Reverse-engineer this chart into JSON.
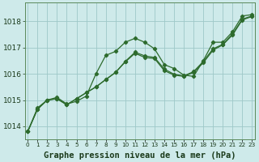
{
  "title": "Graphe pression niveau de la mer (hPa)",
  "hours": [
    0,
    1,
    2,
    3,
    4,
    5,
    6,
    7,
    8,
    9,
    10,
    11,
    12,
    13,
    14,
    15,
    16,
    17,
    18,
    19,
    20,
    21,
    22,
    23
  ],
  "ylim": [
    1013.5,
    1018.7
  ],
  "yticks": [
    1014,
    1015,
    1016,
    1017,
    1018
  ],
  "background_color": "#ceeaea",
  "grid_color": "#9ec8c8",
  "line_color": "#2d6b2d",
  "line1": [
    1013.8,
    1014.7,
    1015.0,
    1015.1,
    1014.85,
    1014.95,
    1015.15,
    1016.0,
    1016.7,
    1016.85,
    1017.2,
    1017.35,
    1017.2,
    1016.95,
    1016.35,
    1016.2,
    1015.95,
    1015.9,
    1016.5,
    1017.2,
    1017.2,
    1017.6,
    1018.2,
    1018.25
  ],
  "line2": [
    1013.8,
    1014.65,
    1015.0,
    1015.05,
    1014.82,
    1015.05,
    1015.28,
    1015.5,
    1015.78,
    1016.05,
    1016.45,
    1016.78,
    1016.62,
    1016.58,
    1016.12,
    1015.95,
    1015.9,
    1016.05,
    1016.42,
    1016.9,
    1017.1,
    1017.48,
    1018.05,
    1018.18
  ],
  "line3": [
    1013.8,
    1014.65,
    1015.0,
    1015.05,
    1014.82,
    1015.05,
    1015.28,
    1015.5,
    1015.78,
    1016.05,
    1016.47,
    1016.82,
    1016.68,
    1016.62,
    1016.18,
    1015.98,
    1015.92,
    1016.08,
    1016.47,
    1016.95,
    1017.12,
    1017.52,
    1018.08,
    1018.2
  ],
  "title_fontsize": 7.5,
  "tick_fontsize": 6.5,
  "xtick_fontsize": 5.2
}
